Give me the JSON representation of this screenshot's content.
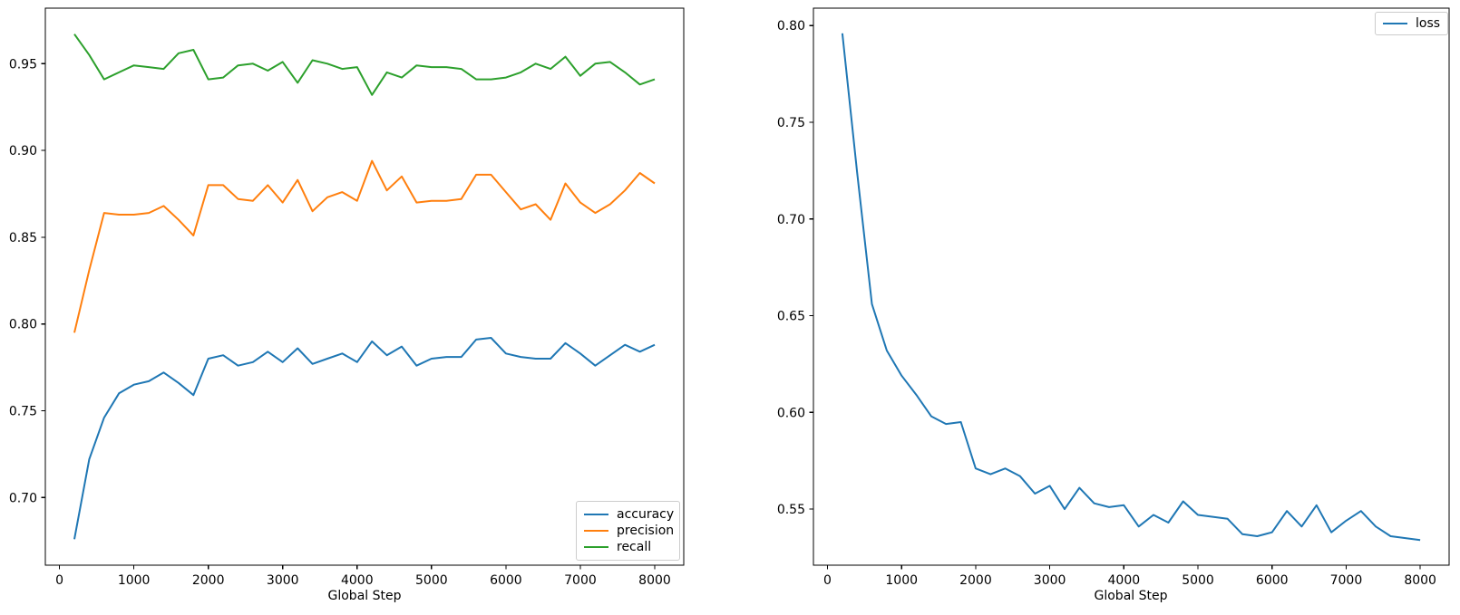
{
  "figure": {
    "background": "#ffffff"
  },
  "chart_data": [
    {
      "type": "line",
      "title": "",
      "xlabel": "Global Step",
      "ylabel": "",
      "grid": false,
      "legend_location": "lower right",
      "xlim": [
        -190,
        8390
      ],
      "ylim": [
        0.661,
        0.982
      ],
      "xticks": [
        0,
        1000,
        2000,
        3000,
        4000,
        5000,
        6000,
        7000,
        8000
      ],
      "yticks": [
        0.7,
        0.75,
        0.8,
        0.85,
        0.9,
        0.95
      ],
      "x": [
        200,
        400,
        600,
        800,
        1000,
        1200,
        1400,
        1600,
        1800,
        2000,
        2200,
        2400,
        2600,
        2800,
        3000,
        3200,
        3400,
        3600,
        3800,
        4000,
        4200,
        4400,
        4600,
        4800,
        5000,
        5200,
        5400,
        5600,
        5800,
        6000,
        6200,
        6400,
        6600,
        6800,
        7000,
        7200,
        7400,
        7600,
        7800,
        8000
      ],
      "series": [
        {
          "name": "accuracy",
          "color": "#1f77b4",
          "values": [
            0.676,
            0.722,
            0.746,
            0.76,
            0.765,
            0.767,
            0.772,
            0.766,
            0.759,
            0.78,
            0.782,
            0.776,
            0.778,
            0.784,
            0.778,
            0.786,
            0.777,
            0.78,
            0.783,
            0.778,
            0.79,
            0.782,
            0.787,
            0.776,
            0.78,
            0.781,
            0.781,
            0.791,
            0.792,
            0.783,
            0.781,
            0.78,
            0.78,
            0.789,
            0.783,
            0.776,
            0.782,
            0.788,
            0.784,
            0.788
          ]
        },
        {
          "name": "precision",
          "color": "#ff7f0e",
          "values": [
            0.795,
            0.831,
            0.864,
            0.863,
            0.863,
            0.864,
            0.868,
            0.86,
            0.851,
            0.88,
            0.88,
            0.872,
            0.871,
            0.88,
            0.87,
            0.883,
            0.865,
            0.873,
            0.876,
            0.871,
            0.894,
            0.877,
            0.885,
            0.87,
            0.871,
            0.871,
            0.872,
            0.886,
            0.886,
            0.876,
            0.866,
            0.869,
            0.86,
            0.881,
            0.87,
            0.864,
            0.869,
            0.877,
            0.887,
            0.881
          ]
        },
        {
          "name": "recall",
          "color": "#2ca02c",
          "values": [
            0.967,
            0.955,
            0.941,
            0.945,
            0.949,
            0.948,
            0.947,
            0.956,
            0.958,
            0.941,
            0.942,
            0.949,
            0.95,
            0.946,
            0.951,
            0.939,
            0.952,
            0.95,
            0.947,
            0.948,
            0.932,
            0.945,
            0.942,
            0.949,
            0.948,
            0.948,
            0.947,
            0.941,
            0.941,
            0.942,
            0.945,
            0.95,
            0.947,
            0.954,
            0.943,
            0.95,
            0.951,
            0.945,
            0.938,
            0.941
          ]
        }
      ]
    },
    {
      "type": "line",
      "title": "",
      "xlabel": "Global Step",
      "ylabel": "",
      "grid": false,
      "legend_location": "upper right",
      "xlim": [
        -190,
        8390
      ],
      "ylim": [
        0.521,
        0.809
      ],
      "xticks": [
        0,
        1000,
        2000,
        3000,
        4000,
        5000,
        6000,
        7000,
        8000
      ],
      "yticks": [
        0.55,
        0.6,
        0.65,
        0.7,
        0.75,
        0.8
      ],
      "x": [
        200,
        400,
        600,
        800,
        1000,
        1200,
        1400,
        1600,
        1800,
        2000,
        2200,
        2400,
        2600,
        2800,
        3000,
        3200,
        3400,
        3600,
        3800,
        4000,
        4200,
        4400,
        4600,
        4800,
        5000,
        5200,
        5400,
        5600,
        5800,
        6000,
        6200,
        6400,
        6600,
        6800,
        7000,
        7200,
        7400,
        7600,
        7800,
        8000
      ],
      "series": [
        {
          "name": "loss",
          "color": "#1f77b4",
          "values": [
            0.796,
            0.724,
            0.656,
            0.632,
            0.619,
            0.609,
            0.598,
            0.594,
            0.595,
            0.571,
            0.568,
            0.571,
            0.567,
            0.558,
            0.562,
            0.55,
            0.561,
            0.553,
            0.551,
            0.552,
            0.541,
            0.547,
            0.543,
            0.554,
            0.547,
            0.546,
            0.545,
            0.537,
            0.536,
            0.538,
            0.549,
            0.541,
            0.552,
            0.538,
            0.544,
            0.549,
            0.541,
            0.536,
            0.535,
            0.534
          ]
        }
      ]
    }
  ]
}
